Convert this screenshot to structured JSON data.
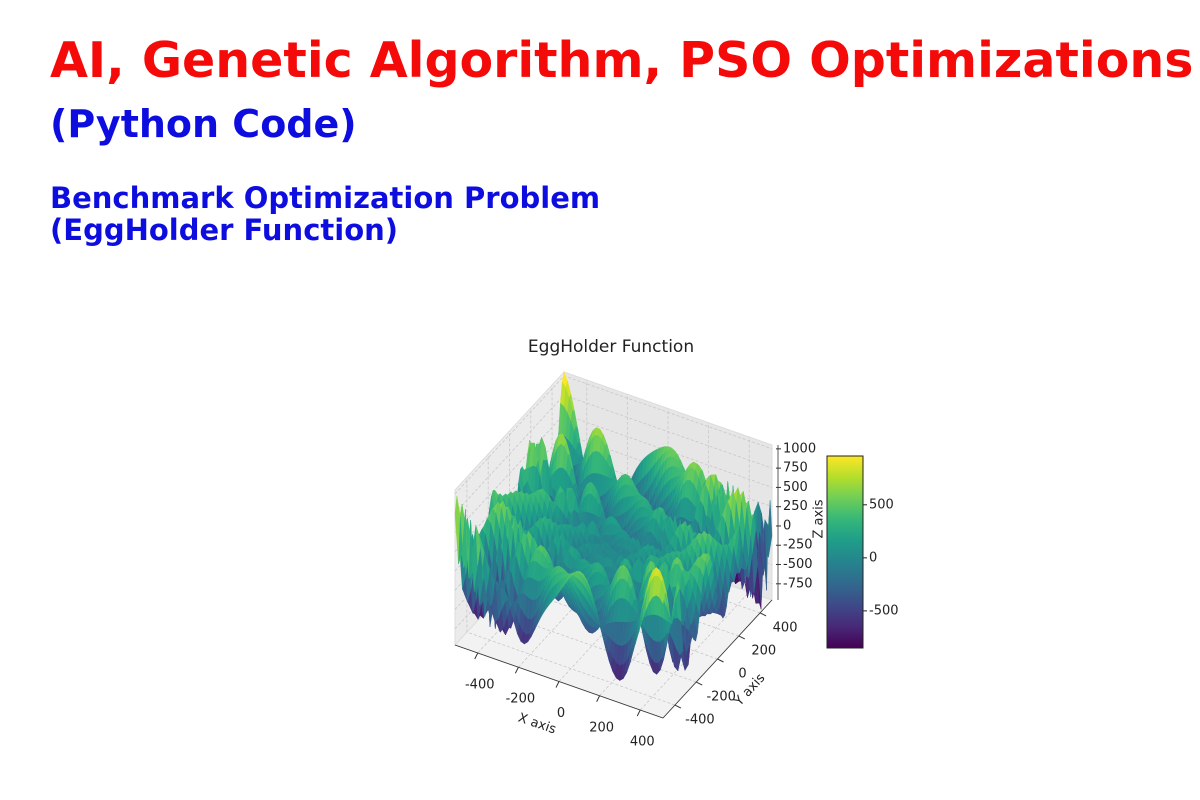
{
  "header": {
    "title": "AI, Genetic Algorithm, PSO Optimizations",
    "subtitle": "(Python Code)",
    "section_title": [
      "Benchmark Optimization Problem",
      "(EggHolder Function)"
    ]
  },
  "chart_data": {
    "type": "surface3d",
    "title": "EggHolder Function",
    "x_label": "X axis",
    "y_label": "Y axis",
    "z_label": "Z axis",
    "xlim": [
      -512,
      512
    ],
    "ylim": [
      -512,
      512
    ],
    "zlim": [
      -960,
      1050
    ],
    "xticks": [
      -400,
      -200,
      0,
      200,
      400
    ],
    "yticks": [
      -400,
      -200,
      0,
      200,
      400
    ],
    "zticks": [
      -750,
      -500,
      -250,
      0,
      250,
      500,
      750,
      1000
    ],
    "colormap": "viridis",
    "colorbar": {
      "lim": [
        -850,
        960
      ],
      "ticks": [
        -500,
        0,
        500
      ]
    }
  }
}
